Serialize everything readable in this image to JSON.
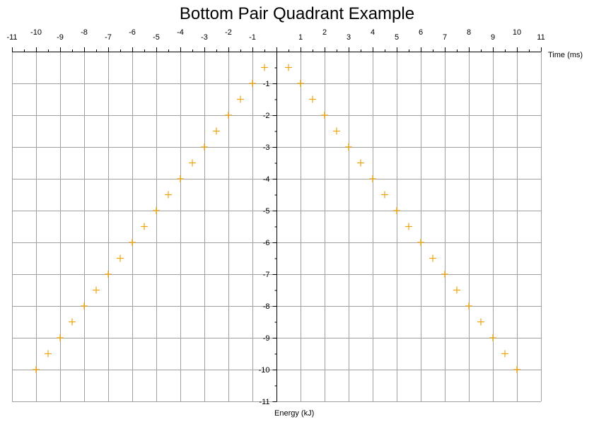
{
  "chart_data": {
    "type": "scatter",
    "title": "Bottom Pair Quadrant Example",
    "xlabel": "Time (ms)",
    "ylabel": "Energy (kJ)",
    "xlim": [
      -11,
      11
    ],
    "ylim": [
      -11,
      0
    ],
    "x_major_ticks": [
      -11,
      -10,
      -9,
      -8,
      -7,
      -6,
      -5,
      -4,
      -3,
      -2,
      -1,
      1,
      2,
      3,
      4,
      5,
      6,
      7,
      8,
      9,
      10,
      11
    ],
    "y_major_ticks": [
      -1,
      -2,
      -3,
      -4,
      -5,
      -6,
      -7,
      -8,
      -9,
      -10,
      -11
    ],
    "grid": true,
    "marker": "plus",
    "marker_color": "#f0a30a",
    "grid_color": "#a0a0a0",
    "series": [
      {
        "points": [
          [
            -10,
            -10
          ],
          [
            -9.5,
            -9.5
          ],
          [
            -9,
            -9
          ],
          [
            -8.5,
            -8.5
          ],
          [
            -8,
            -8
          ],
          [
            -7.5,
            -7.5
          ],
          [
            -7,
            -7
          ],
          [
            -6.5,
            -6.5
          ],
          [
            -6,
            -6
          ],
          [
            -5.5,
            -5.5
          ],
          [
            -5,
            -5
          ],
          [
            -4.5,
            -4.5
          ],
          [
            -4,
            -4
          ],
          [
            -3.5,
            -3.5
          ],
          [
            -3,
            -3
          ],
          [
            -2.5,
            -2.5
          ],
          [
            -2,
            -2
          ],
          [
            -1.5,
            -1.5
          ],
          [
            -1,
            -1
          ],
          [
            -0.5,
            -0.5
          ],
          [
            0.5,
            -0.5
          ],
          [
            1,
            -1
          ],
          [
            1.5,
            -1.5
          ],
          [
            2,
            -2
          ],
          [
            2.5,
            -2.5
          ],
          [
            3,
            -3
          ],
          [
            3.5,
            -3.5
          ],
          [
            4,
            -4
          ],
          [
            4.5,
            -4.5
          ],
          [
            5,
            -5
          ],
          [
            5.5,
            -5.5
          ],
          [
            6,
            -6
          ],
          [
            6.5,
            -6.5
          ],
          [
            7,
            -7
          ],
          [
            7.5,
            -7.5
          ],
          [
            8,
            -8
          ],
          [
            8.5,
            -8.5
          ],
          [
            9,
            -9
          ],
          [
            9.5,
            -9.5
          ],
          [
            10,
            -10
          ]
        ]
      }
    ]
  }
}
